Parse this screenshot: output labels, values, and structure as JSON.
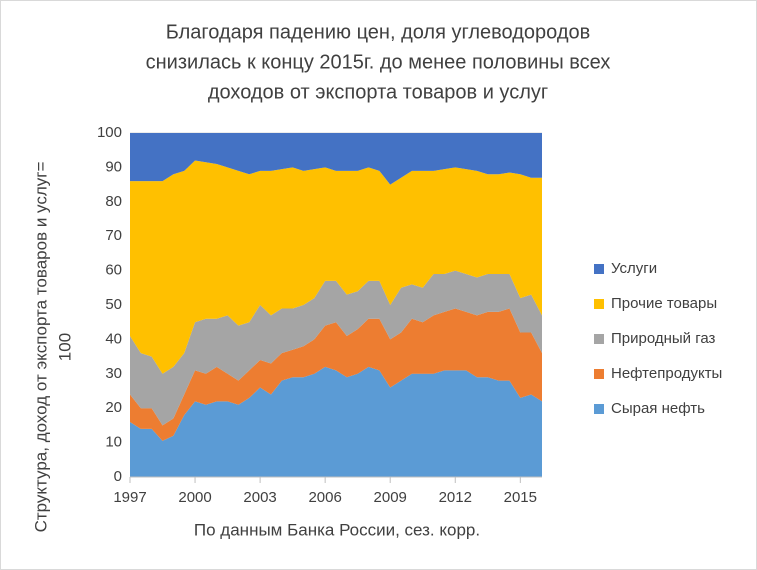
{
  "chart_data": {
    "type": "stacked_area",
    "title": [
      "Благодаря падению цен, доля углеводородов",
      "снизилась к концу 2015г. до менее   половины всех",
      "доходов от экспорта товаров и услуг"
    ],
    "xlabel": "По данным Банка России, сез. корр.",
    "ylabel": [
      "Структура, доход от экспорта товаров и услуг=",
      "100"
    ],
    "x": [
      1997,
      1997.5,
      1998,
      1998.5,
      1999,
      1999.5,
      2000,
      2000.5,
      2001,
      2001.5,
      2002,
      2002.5,
      2003,
      2003.5,
      2004,
      2004.5,
      2005,
      2005.5,
      2006,
      2006.5,
      2007,
      2007.5,
      2008,
      2008.5,
      2009,
      2009.5,
      2010,
      2010.5,
      2011,
      2011.5,
      2012,
      2012.5,
      2013,
      2013.5,
      2014,
      2014.5,
      2015,
      2015.5,
      2016
    ],
    "series": [
      {
        "name": "Сырая нефть",
        "color": "#5b9bd5",
        "values": [
          16,
          14,
          14,
          10.5,
          12,
          18,
          22,
          21,
          22,
          22,
          21,
          23,
          26,
          24,
          28,
          29,
          29,
          30,
          32,
          31,
          29,
          30,
          32,
          31,
          26,
          28,
          30,
          30,
          30,
          31,
          31,
          31,
          29,
          29,
          28,
          28,
          23,
          24,
          22
        ]
      },
      {
        "name": "Нефтепродукты",
        "color": "#ed7d31",
        "values": [
          8,
          6,
          6,
          4.5,
          5,
          6,
          9,
          9,
          10,
          8,
          7,
          8,
          8,
          9,
          8,
          8,
          9,
          10,
          12,
          14,
          12,
          13,
          14,
          15,
          14,
          14,
          16,
          15,
          17,
          17,
          18,
          17,
          18,
          19,
          20,
          21,
          19,
          18,
          14
        ]
      },
      {
        "name": "Природный газ",
        "color": "#a5a5a5",
        "values": [
          17,
          16,
          15,
          15,
          15,
          12,
          14,
          16,
          14,
          17,
          16,
          14,
          16,
          14,
          13,
          12,
          12,
          12,
          13,
          12,
          12,
          11,
          11,
          11,
          10,
          13,
          10,
          10,
          12,
          11,
          11,
          11,
          11,
          11,
          11,
          10,
          10,
          11,
          11
        ]
      },
      {
        "name": "Прочие товары",
        "color": "#ffc000",
        "values": [
          45,
          50,
          51,
          56,
          56,
          53,
          47,
          45.5,
          45,
          43,
          45,
          43,
          39,
          42,
          40.5,
          41,
          39,
          37.5,
          33,
          32,
          36,
          35,
          33,
          32,
          35,
          32,
          33,
          34,
          30,
          30.5,
          30,
          30.5,
          31,
          29,
          29,
          29.5,
          36,
          34,
          40
        ]
      },
      {
        "name": "Услуги",
        "color": "#4472c4",
        "values": [
          14,
          14,
          14,
          14,
          12,
          11,
          8,
          8.5,
          9,
          10,
          11,
          12,
          11,
          11,
          10.5,
          10,
          11,
          10.5,
          10,
          11,
          11,
          11,
          10,
          11,
          15,
          13,
          11,
          11,
          11,
          10.5,
          10,
          10.5,
          11,
          12,
          12,
          11.5,
          12,
          13,
          13
        ]
      }
    ],
    "xlim": [
      1997,
      2016
    ],
    "xticks": [
      1997,
      2000,
      2003,
      2006,
      2009,
      2012,
      2015
    ],
    "ylim": [
      0,
      100
    ],
    "yticks": [
      0,
      10,
      20,
      30,
      40,
      50,
      60,
      70,
      80,
      90,
      100
    ],
    "grid": true,
    "legend": "right"
  }
}
